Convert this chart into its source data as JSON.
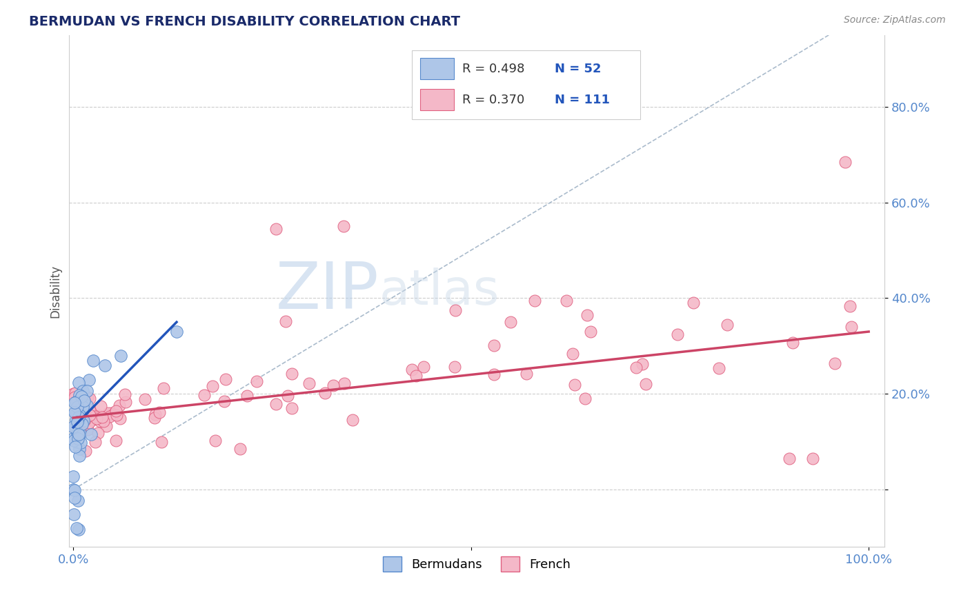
{
  "title": "BERMUDAN VS FRENCH DISABILITY CORRELATION CHART",
  "source": "Source: ZipAtlas.com",
  "ylabel": "Disability",
  "background_color": "#ffffff",
  "watermark_zip": "ZIP",
  "watermark_atlas": "atlas",
  "bermudan_color": "#aec6e8",
  "french_color": "#f4b8c8",
  "bermudan_edge": "#5588cc",
  "french_edge": "#e06080",
  "trendline_bermudan": "#2255bb",
  "trendline_french": "#cc4466",
  "refline_color": "#aabbcc",
  "grid_color": "#cccccc",
  "tick_color": "#5588cc",
  "title_color": "#1a2a6a",
  "source_color": "#888888",
  "ylabel_color": "#555555",
  "legend_r_color": "#333333",
  "legend_n_color": "#2255bb",
  "legend_r_bermudan": "R = 0.498",
  "legend_n_bermudan": "N = 52",
  "legend_r_french": "R = 0.370",
  "legend_n_french": "N = 111",
  "xlim": [
    -0.005,
    1.02
  ],
  "ylim": [
    -0.12,
    0.95
  ],
  "berm_trend_x0": 0.0,
  "berm_trend_x1": 0.13,
  "berm_trend_y0": 0.13,
  "berm_trend_y1": 0.35,
  "french_trend_x0": 0.0,
  "french_trend_x1": 1.0,
  "french_trend_y0": 0.15,
  "french_trend_y1": 0.33,
  "ref_line_x0": 0.0,
  "ref_line_x1": 0.95,
  "ref_line_y0": 0.0,
  "ref_line_y1": 0.95
}
